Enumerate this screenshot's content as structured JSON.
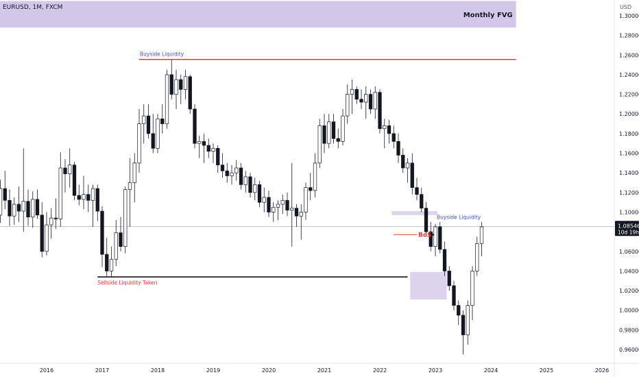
{
  "symbol": "EURUSD, 1M, FXCM",
  "currency": "USD",
  "price_tag": {
    "price": "1.08546",
    "countdown": "10d 19h"
  },
  "annotations": {
    "monthly_fvg": "Monthly FVG",
    "buyside_top": "Buyside Liquidity",
    "buyside_right": "Buyside Liquidity",
    "sellside": "Sellside Liquidity Taken",
    "bos": "BoS"
  },
  "colors": {
    "bull_body": "#ffffff",
    "bear_body": "#131722",
    "wick": "#131722",
    "fvg_zone": "#d1c4e9",
    "buyside_line": "#e53935",
    "sellside_line": "#000000",
    "buyside_text": "#3f51b5",
    "sellside_text": "#e53935",
    "bos_text": "#e53935"
  },
  "chart_data": {
    "type": "candlestick",
    "title": "EURUSD, 1M, FXCM",
    "ylabel": "USD",
    "ylim": [
      0.94,
      1.32
    ],
    "y_ticks": [
      "1.30000",
      "1.28000",
      "1.26000",
      "1.24000",
      "1.22000",
      "1.20000",
      "1.18000",
      "1.16000",
      "1.14000",
      "1.12000",
      "1.10000",
      "1.08000",
      "1.06000",
      "1.04000",
      "1.02000",
      "1.00000",
      "0.98000",
      "0.96000"
    ],
    "x_ticks": [
      "2016",
      "2017",
      "2018",
      "2019",
      "2020",
      "2021",
      "2022",
      "2023",
      "2024",
      "2025",
      "2026"
    ],
    "current_price": 1.08546,
    "levels": {
      "buyside_liquidity": 1.2555,
      "sellside_liquidity": 1.034,
      "last_price": 1.08546
    },
    "zones": [
      {
        "label": "Monthly FVG",
        "from": "2015-01",
        "to": "2024-06",
        "low": 1.288,
        "high": 1.315
      },
      {
        "label": "",
        "from": "2022-04",
        "to": "2023-01",
        "low": 1.097,
        "high": 1.101
      },
      {
        "label": "",
        "from": "2022-08",
        "to": "2023-03",
        "low": 1.011,
        "high": 1.039
      }
    ],
    "grid": false,
    "candles": [
      {
        "t": "2015-01",
        "o": 1.075,
        "h": 1.116,
        "l": 1.054,
        "c": 1.103
      },
      {
        "t": "2015-02",
        "o": 1.103,
        "h": 1.122,
        "l": 1.078,
        "c": 1.097
      },
      {
        "t": "2015-03",
        "o": 1.097,
        "h": 1.133,
        "l": 1.089,
        "c": 1.124
      },
      {
        "t": "2015-04",
        "o": 1.124,
        "h": 1.142,
        "l": 1.103,
        "c": 1.112
      },
      {
        "t": "2015-05",
        "o": 1.112,
        "h": 1.123,
        "l": 1.086,
        "c": 1.096
      },
      {
        "t": "2015-06",
        "o": 1.096,
        "h": 1.115,
        "l": 1.087,
        "c": 1.108
      },
      {
        "t": "2015-07",
        "o": 1.108,
        "h": 1.126,
        "l": 1.09,
        "c": 1.101
      },
      {
        "t": "2015-08",
        "o": 1.101,
        "h": 1.165,
        "l": 1.08,
        "c": 1.111
      },
      {
        "t": "2015-09",
        "o": 1.111,
        "h": 1.123,
        "l": 1.086,
        "c": 1.095
      },
      {
        "t": "2015-10",
        "o": 1.095,
        "h": 1.121,
        "l": 1.084,
        "c": 1.113
      },
      {
        "t": "2015-11",
        "o": 1.113,
        "h": 1.123,
        "l": 1.093,
        "c": 1.097
      },
      {
        "t": "2015-12",
        "o": 1.097,
        "h": 1.11,
        "l": 1.054,
        "c": 1.06
      },
      {
        "t": "2016-01",
        "o": 1.06,
        "h": 1.1,
        "l": 1.056,
        "c": 1.087
      },
      {
        "t": "2016-02",
        "o": 1.087,
        "h": 1.104,
        "l": 1.073,
        "c": 1.094
      },
      {
        "t": "2016-03",
        "o": 1.094,
        "h": 1.114,
        "l": 1.083,
        "c": 1.093
      },
      {
        "t": "2016-04",
        "o": 1.093,
        "h": 1.161,
        "l": 1.085,
        "c": 1.145
      },
      {
        "t": "2016-05",
        "o": 1.145,
        "h": 1.154,
        "l": 1.12,
        "c": 1.139
      },
      {
        "t": "2016-06",
        "o": 1.139,
        "h": 1.165,
        "l": 1.125,
        "c": 1.148
      },
      {
        "t": "2016-07",
        "o": 1.148,
        "h": 1.151,
        "l": 1.112,
        "c": 1.117
      },
      {
        "t": "2016-08",
        "o": 1.117,
        "h": 1.128,
        "l": 1.107,
        "c": 1.113
      },
      {
        "t": "2016-09",
        "o": 1.113,
        "h": 1.137,
        "l": 1.103,
        "c": 1.118
      },
      {
        "t": "2016-10",
        "o": 1.118,
        "h": 1.128,
        "l": 1.1,
        "c": 1.112
      },
      {
        "t": "2016-11",
        "o": 1.112,
        "h": 1.128,
        "l": 1.085,
        "c": 1.124
      },
      {
        "t": "2016-12",
        "o": 1.124,
        "h": 1.128,
        "l": 1.091,
        "c": 1.101
      },
      {
        "t": "2017-01",
        "o": 1.101,
        "h": 1.106,
        "l": 1.044,
        "c": 1.057
      },
      {
        "t": "2017-02",
        "o": 1.057,
        "h": 1.074,
        "l": 1.034,
        "c": 1.04
      },
      {
        "t": "2017-03",
        "o": 1.04,
        "h": 1.065,
        "l": 1.034,
        "c": 1.052
      },
      {
        "t": "2017-04",
        "o": 1.052,
        "h": 1.092,
        "l": 1.045,
        "c": 1.079
      },
      {
        "t": "2017-05",
        "o": 1.079,
        "h": 1.095,
        "l": 1.06,
        "c": 1.065
      },
      {
        "t": "2017-06",
        "o": 1.065,
        "h": 1.126,
        "l": 1.058,
        "c": 1.123
      },
      {
        "t": "2017-07",
        "o": 1.123,
        "h": 1.155,
        "l": 1.085,
        "c": 1.13
      },
      {
        "t": "2017-08",
        "o": 1.13,
        "h": 1.16,
        "l": 1.11,
        "c": 1.15
      },
      {
        "t": "2017-09",
        "o": 1.15,
        "h": 1.205,
        "l": 1.14,
        "c": 1.19
      },
      {
        "t": "2017-10",
        "o": 1.19,
        "h": 1.21,
        "l": 1.17,
        "c": 1.198
      },
      {
        "t": "2017-11",
        "o": 1.198,
        "h": 1.21,
        "l": 1.175,
        "c": 1.18
      },
      {
        "t": "2017-12",
        "o": 1.18,
        "h": 1.2,
        "l": 1.16,
        "c": 1.165
      },
      {
        "t": "2018-01",
        "o": 1.165,
        "h": 1.2,
        "l": 1.16,
        "c": 1.195
      },
      {
        "t": "2018-02",
        "o": 1.195,
        "h": 1.21,
        "l": 1.18,
        "c": 1.19
      },
      {
        "t": "2018-03",
        "o": 1.19,
        "h": 1.245,
        "l": 1.185,
        "c": 1.24
      },
      {
        "t": "2018-04",
        "o": 1.24,
        "h": 1.255,
        "l": 1.215,
        "c": 1.22
      },
      {
        "t": "2018-05",
        "o": 1.22,
        "h": 1.245,
        "l": 1.205,
        "c": 1.235
      },
      {
        "t": "2018-06",
        "o": 1.235,
        "h": 1.24,
        "l": 1.21,
        "c": 1.225
      },
      {
        "t": "2018-07",
        "o": 1.225,
        "h": 1.245,
        "l": 1.215,
        "c": 1.238
      },
      {
        "t": "2018-08",
        "o": 1.238,
        "h": 1.24,
        "l": 1.2,
        "c": 1.205
      },
      {
        "t": "2018-09",
        "o": 1.205,
        "h": 1.21,
        "l": 1.165,
        "c": 1.17
      },
      {
        "t": "2018-10",
        "o": 1.17,
        "h": 1.178,
        "l": 1.155,
        "c": 1.172
      },
      {
        "t": "2018-11",
        "o": 1.172,
        "h": 1.18,
        "l": 1.15,
        "c": 1.168
      },
      {
        "t": "2018-12",
        "o": 1.168,
        "h": 1.175,
        "l": 1.155,
        "c": 1.162
      },
      {
        "t": "2019-01",
        "o": 1.162,
        "h": 1.17,
        "l": 1.15,
        "c": 1.165
      },
      {
        "t": "2019-02",
        "o": 1.165,
        "h": 1.168,
        "l": 1.14,
        "c": 1.148
      },
      {
        "t": "2019-03",
        "o": 1.148,
        "h": 1.16,
        "l": 1.135,
        "c": 1.142
      },
      {
        "t": "2019-04",
        "o": 1.142,
        "h": 1.15,
        "l": 1.13,
        "c": 1.137
      },
      {
        "t": "2019-05",
        "o": 1.137,
        "h": 1.148,
        "l": 1.128,
        "c": 1.14
      },
      {
        "t": "2019-06",
        "o": 1.14,
        "h": 1.153,
        "l": 1.132,
        "c": 1.145
      },
      {
        "t": "2019-07",
        "o": 1.145,
        "h": 1.15,
        "l": 1.123,
        "c": 1.128
      },
      {
        "t": "2019-08",
        "o": 1.128,
        "h": 1.142,
        "l": 1.12,
        "c": 1.136
      },
      {
        "t": "2019-09",
        "o": 1.136,
        "h": 1.14,
        "l": 1.115,
        "c": 1.12
      },
      {
        "t": "2019-10",
        "o": 1.12,
        "h": 1.135,
        "l": 1.112,
        "c": 1.128
      },
      {
        "t": "2019-11",
        "o": 1.128,
        "h": 1.132,
        "l": 1.105,
        "c": 1.11
      },
      {
        "t": "2019-12",
        "o": 1.11,
        "h": 1.125,
        "l": 1.1,
        "c": 1.115
      },
      {
        "t": "2020-01",
        "o": 1.115,
        "h": 1.122,
        "l": 1.095,
        "c": 1.1
      },
      {
        "t": "2020-02",
        "o": 1.1,
        "h": 1.11,
        "l": 1.09,
        "c": 1.105
      },
      {
        "t": "2020-03",
        "o": 1.105,
        "h": 1.112,
        "l": 1.092,
        "c": 1.108
      },
      {
        "t": "2020-04",
        "o": 1.108,
        "h": 1.118,
        "l": 1.098,
        "c": 1.112
      },
      {
        "t": "2020-05",
        "o": 1.112,
        "h": 1.12,
        "l": 1.096,
        "c": 1.102
      },
      {
        "t": "2020-06",
        "o": 1.102,
        "h": 1.15,
        "l": 1.065,
        "c": 1.104
      },
      {
        "t": "2020-07",
        "o": 1.104,
        "h": 1.108,
        "l": 1.085,
        "c": 1.096
      },
      {
        "t": "2020-08",
        "o": 1.096,
        "h": 1.108,
        "l": 1.072,
        "c": 1.1
      },
      {
        "t": "2020-09",
        "o": 1.1,
        "h": 1.13,
        "l": 1.092,
        "c": 1.125
      },
      {
        "t": "2020-10",
        "o": 1.125,
        "h": 1.14,
        "l": 1.112,
        "c": 1.122
      },
      {
        "t": "2020-11",
        "o": 1.122,
        "h": 1.16,
        "l": 1.115,
        "c": 1.15
      },
      {
        "t": "2020-12",
        "o": 1.15,
        "h": 1.195,
        "l": 1.145,
        "c": 1.188
      },
      {
        "t": "2021-01",
        "o": 1.188,
        "h": 1.2,
        "l": 1.16,
        "c": 1.17
      },
      {
        "t": "2021-02",
        "o": 1.17,
        "h": 1.2,
        "l": 1.165,
        "c": 1.192
      },
      {
        "t": "2021-03",
        "o": 1.192,
        "h": 1.2,
        "l": 1.17,
        "c": 1.175
      },
      {
        "t": "2021-04",
        "o": 1.175,
        "h": 1.185,
        "l": 1.165,
        "c": 1.172
      },
      {
        "t": "2021-05",
        "o": 1.172,
        "h": 1.205,
        "l": 1.168,
        "c": 1.198
      },
      {
        "t": "2021-06",
        "o": 1.198,
        "h": 1.23,
        "l": 1.19,
        "c": 1.22
      },
      {
        "t": "2021-07",
        "o": 1.22,
        "h": 1.235,
        "l": 1.2,
        "c": 1.225
      },
      {
        "t": "2021-08",
        "o": 1.225,
        "h": 1.228,
        "l": 1.21,
        "c": 1.215
      },
      {
        "t": "2021-09",
        "o": 1.215,
        "h": 1.225,
        "l": 1.205,
        "c": 1.212
      },
      {
        "t": "2021-10",
        "o": 1.212,
        "h": 1.228,
        "l": 1.195,
        "c": 1.22
      },
      {
        "t": "2021-11",
        "o": 1.22,
        "h": 1.225,
        "l": 1.2,
        "c": 1.205
      },
      {
        "t": "2021-12",
        "o": 1.205,
        "h": 1.228,
        "l": 1.195,
        "c": 1.222
      },
      {
        "t": "2022-01",
        "o": 1.222,
        "h": 1.225,
        "l": 1.18,
        "c": 1.185
      },
      {
        "t": "2022-02",
        "o": 1.185,
        "h": 1.195,
        "l": 1.165,
        "c": 1.188
      },
      {
        "t": "2022-03",
        "o": 1.188,
        "h": 1.194,
        "l": 1.17,
        "c": 1.18
      },
      {
        "t": "2022-04",
        "o": 1.18,
        "h": 1.188,
        "l": 1.165,
        "c": 1.172
      },
      {
        "t": "2022-05",
        "o": 1.172,
        "h": 1.18,
        "l": 1.15,
        "c": 1.158
      },
      {
        "t": "2022-06",
        "o": 1.158,
        "h": 1.165,
        "l": 1.14,
        "c": 1.145
      },
      {
        "t": "2022-07",
        "o": 1.145,
        "h": 1.155,
        "l": 1.13,
        "c": 1.15
      },
      {
        "t": "2022-08",
        "o": 1.15,
        "h": 1.16,
        "l": 1.118,
        "c": 1.125
      },
      {
        "t": "2022-09",
        "o": 1.125,
        "h": 1.135,
        "l": 1.112,
        "c": 1.118
      },
      {
        "t": "2022-10",
        "o": 1.118,
        "h": 1.125,
        "l": 1.1,
        "c": 1.104
      },
      {
        "t": "2022-11",
        "o": 1.104,
        "h": 1.11,
        "l": 1.075,
        "c": 1.08
      },
      {
        "t": "2022-12",
        "o": 1.08,
        "h": 1.09,
        "l": 1.06,
        "c": 1.065
      },
      {
        "t": "2023-01",
        "o": 1.065,
        "h": 1.088,
        "l": 1.055,
        "c": 1.085
      },
      {
        "t": "2023-02",
        "o": 1.085,
        "h": 1.09,
        "l": 1.058,
        "c": 1.062
      },
      {
        "t": "2023-03",
        "o": 1.062,
        "h": 1.07,
        "l": 1.035,
        "c": 1.04
      },
      {
        "t": "2023-04",
        "o": 1.04,
        "h": 1.045,
        "l": 1.02,
        "c": 1.025
      },
      {
        "t": "2023-05",
        "o": 1.025,
        "h": 1.03,
        "l": 1.0,
        "c": 1.005
      },
      {
        "t": "2023-06",
        "o": 1.005,
        "h": 1.01,
        "l": 0.985,
        "c": 0.995
      },
      {
        "t": "2023-07",
        "o": 0.995,
        "h": 1.0,
        "l": 0.955,
        "c": 0.975
      },
      {
        "t": "2023-08",
        "o": 0.975,
        "h": 1.01,
        "l": 0.965,
        "c": 1.005
      },
      {
        "t": "2023-09",
        "o": 1.005,
        "h": 1.045,
        "l": 0.99,
        "c": 1.04
      },
      {
        "t": "2023-10",
        "o": 1.04,
        "h": 1.075,
        "l": 1.035,
        "c": 1.068
      },
      {
        "t": "2023-11",
        "o": 1.068,
        "h": 1.09,
        "l": 1.055,
        "c": 1.085
      }
    ]
  }
}
